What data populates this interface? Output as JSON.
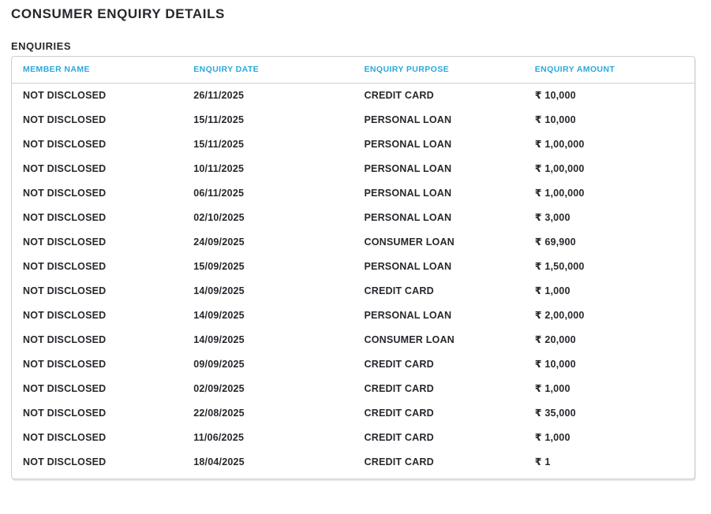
{
  "page": {
    "title": "CONSUMER ENQUIRY DETAILS",
    "section_title": "ENQUIRIES"
  },
  "colors": {
    "heading_text": "#26282d",
    "column_header_text": "#29a8db",
    "cell_text": "#26282d",
    "table_border": "#cfcfcf",
    "background": "#ffffff"
  },
  "table": {
    "columns": [
      "MEMBER NAME",
      "ENQUIRY DATE",
      "ENQUIRY PURPOSE",
      "ENQUIRY AMOUNT"
    ],
    "rows": [
      {
        "member_name": "NOT DISCLOSED",
        "enquiry_date": "26/11/2025",
        "enquiry_purpose": "CREDIT CARD",
        "enquiry_amount": "₹ 10,000"
      },
      {
        "member_name": "NOT DISCLOSED",
        "enquiry_date": "15/11/2025",
        "enquiry_purpose": "PERSONAL LOAN",
        "enquiry_amount": "₹ 10,000"
      },
      {
        "member_name": "NOT DISCLOSED",
        "enquiry_date": "15/11/2025",
        "enquiry_purpose": "PERSONAL LOAN",
        "enquiry_amount": "₹ 1,00,000"
      },
      {
        "member_name": "NOT DISCLOSED",
        "enquiry_date": "10/11/2025",
        "enquiry_purpose": "PERSONAL LOAN",
        "enquiry_amount": "₹ 1,00,000"
      },
      {
        "member_name": "NOT DISCLOSED",
        "enquiry_date": "06/11/2025",
        "enquiry_purpose": "PERSONAL LOAN",
        "enquiry_amount": "₹ 1,00,000"
      },
      {
        "member_name": "NOT DISCLOSED",
        "enquiry_date": "02/10/2025",
        "enquiry_purpose": "PERSONAL LOAN",
        "enquiry_amount": "₹ 3,000"
      },
      {
        "member_name": "NOT DISCLOSED",
        "enquiry_date": "24/09/2025",
        "enquiry_purpose": "CONSUMER LOAN",
        "enquiry_amount": "₹ 69,900"
      },
      {
        "member_name": "NOT DISCLOSED",
        "enquiry_date": "15/09/2025",
        "enquiry_purpose": "PERSONAL LOAN",
        "enquiry_amount": "₹ 1,50,000"
      },
      {
        "member_name": "NOT DISCLOSED",
        "enquiry_date": "14/09/2025",
        "enquiry_purpose": "CREDIT CARD",
        "enquiry_amount": "₹ 1,000"
      },
      {
        "member_name": "NOT DISCLOSED",
        "enquiry_date": "14/09/2025",
        "enquiry_purpose": "PERSONAL LOAN",
        "enquiry_amount": "₹ 2,00,000"
      },
      {
        "member_name": "NOT DISCLOSED",
        "enquiry_date": "14/09/2025",
        "enquiry_purpose": "CONSUMER LOAN",
        "enquiry_amount": "₹ 20,000"
      },
      {
        "member_name": "NOT DISCLOSED",
        "enquiry_date": "09/09/2025",
        "enquiry_purpose": "CREDIT CARD",
        "enquiry_amount": "₹ 10,000"
      },
      {
        "member_name": "NOT DISCLOSED",
        "enquiry_date": "02/09/2025",
        "enquiry_purpose": "CREDIT CARD",
        "enquiry_amount": "₹ 1,000"
      },
      {
        "member_name": "NOT DISCLOSED",
        "enquiry_date": "22/08/2025",
        "enquiry_purpose": "CREDIT CARD",
        "enquiry_amount": "₹ 35,000"
      },
      {
        "member_name": "NOT DISCLOSED",
        "enquiry_date": "11/06/2025",
        "enquiry_purpose": "CREDIT CARD",
        "enquiry_amount": "₹ 1,000"
      },
      {
        "member_name": "NOT DISCLOSED",
        "enquiry_date": "18/04/2025",
        "enquiry_purpose": "CREDIT CARD",
        "enquiry_amount": "₹ 1"
      }
    ]
  }
}
